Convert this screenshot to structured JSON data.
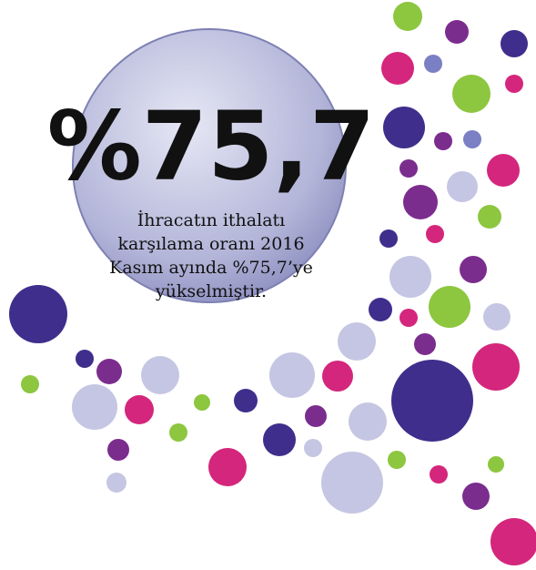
{
  "headline": "%75,7",
  "description": [
    "İhracatın ithalatı",
    "karşılama oranı 2016",
    "Kasım ayında %75,7’ye",
    "yükselmiştir."
  ]
}
